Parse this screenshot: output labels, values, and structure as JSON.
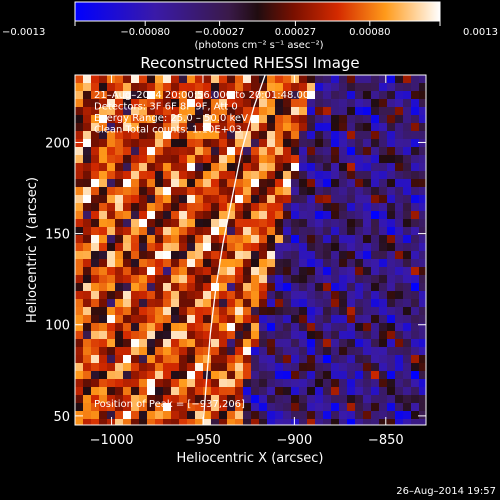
{
  "chart_data": {
    "type": "heatmap",
    "title": "Reconstructed RHESSI Image",
    "xlabel": "Heliocentric X (arcsec)",
    "ylabel": "Heliocentric Y (arcsec)",
    "xlim": [
      -1020,
      -828
    ],
    "ylim": [
      45,
      237
    ],
    "x_ticks": [
      -1000,
      -950,
      -900,
      -850
    ],
    "x_tick_labels": [
      "−1000",
      "−950",
      "−900",
      "−850"
    ],
    "y_ticks": [
      50,
      100,
      150,
      200
    ],
    "y_tick_labels": [
      "50",
      "100",
      "150",
      "200"
    ],
    "colorbar": {
      "range": [
        -0.0013,
        0.0013
      ],
      "tick_values": [
        -0.0013,
        -0.0008,
        -0.00027,
        0.00027,
        0.0008,
        0.0013
      ],
      "tick_labels": [
        "−0.0013",
        "−0.00080",
        "−0.00027",
        "0.00027",
        "0.00080",
        "0.0013"
      ],
      "units_label": "(photons cm⁻² s⁻¹ asec⁻²)"
    },
    "annotations": [
      "21–Aug–2014 20:00:56.000 to 20:01:48.000",
      "Detectors: 3F 6F 8F 9F, Att 0",
      "Energy Range: 25.0 – 50.0 keV",
      "Clean    Total counts: 1.10E+03"
    ],
    "peak_label": "Position of Peak = [−937,206]",
    "peak": [
      -937,
      206
    ],
    "limb_curve": [
      [
        -950,
        45
      ],
      [
        -948,
        70
      ],
      [
        -946,
        95
      ],
      [
        -943,
        120
      ],
      [
        -939,
        145
      ],
      [
        -934,
        170
      ],
      [
        -929,
        195
      ],
      [
        -922,
        220
      ],
      [
        -916,
        237
      ]
    ],
    "timestamp": "26–Aug–2014 19:57",
    "grid": false,
    "colors": {
      "background": "#000000",
      "text": "#ffffff",
      "limb": "#ffffff"
    }
  }
}
